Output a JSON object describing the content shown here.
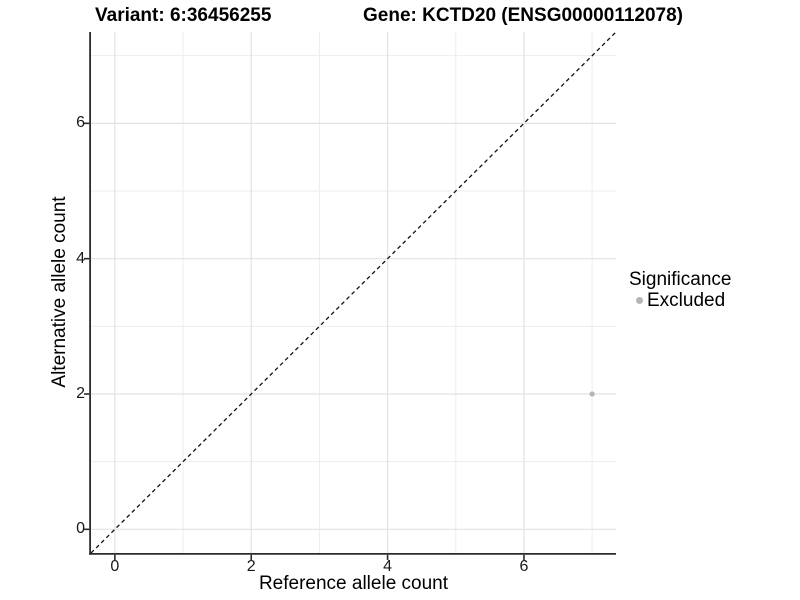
{
  "header": {
    "variant_title": "Variant: 6:36456255",
    "gene_title": "Gene: KCTD20 (ENSG00000112078)"
  },
  "axes": {
    "x_label": "Reference allele count",
    "y_label": "Alternative allele count"
  },
  "legend": {
    "title": "Significance",
    "items": [
      {
        "label": "Excluded",
        "color": "#b5b5b5"
      }
    ]
  },
  "colors": {
    "point": "#b5b5b5",
    "grid_major": "#e2e2e2",
    "grid_minor": "#ededed",
    "axis_line": "#2b2b2b",
    "tick_mark": "#2b2b2b",
    "reference_line": "#111111",
    "background": "#ffffff"
  },
  "chart_data": {
    "type": "scatter",
    "title": "Variant: 6:36456255 | Gene: KCTD20 (ENSG00000112078)",
    "xlabel": "Reference allele count",
    "ylabel": "Alternative allele count",
    "xlim": [
      -0.35,
      7.35
    ],
    "ylim": [
      -0.35,
      7.35
    ],
    "x_ticks": [
      0,
      2,
      4,
      6
    ],
    "y_ticks": [
      0,
      2,
      4,
      6
    ],
    "x_minor_ticks": [
      1,
      3,
      5,
      7
    ],
    "y_minor_ticks": [
      1,
      3,
      5,
      7
    ],
    "grid": "major+minor",
    "legend_position": "right",
    "legend_title": "Significance",
    "series": [
      {
        "name": "Excluded",
        "color": "#b5b5b5",
        "points": [
          {
            "x": 7,
            "y": 2
          }
        ]
      }
    ],
    "reference_line": {
      "kind": "identity",
      "slope": 1,
      "intercept": 0,
      "style": "dashed",
      "color": "#111111"
    }
  }
}
